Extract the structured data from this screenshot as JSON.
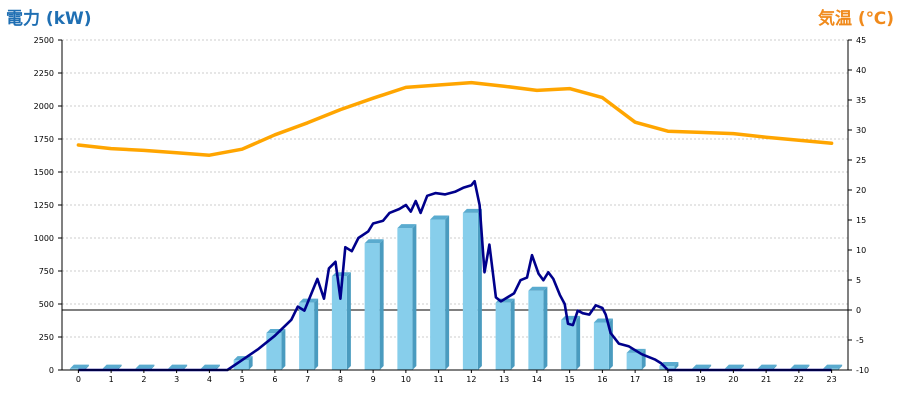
{
  "chart_data": {
    "type": "bar+line",
    "left_axis": {
      "label": "電力 (kW)",
      "range": [
        0,
        2500
      ],
      "ticks": [
        0,
        250,
        500,
        750,
        1000,
        1250,
        1500,
        1750,
        2000,
        2250,
        2500
      ]
    },
    "right_axis": {
      "label": "気温 (℃)",
      "range": [
        -10,
        45
      ],
      "ticks": [
        -10,
        -5,
        0,
        5,
        10,
        15,
        20,
        25,
        30,
        35,
        40,
        45
      ]
    },
    "categories": [
      "0",
      "1",
      "2",
      "3",
      "4",
      "5",
      "6",
      "7",
      "8",
      "9",
      "10",
      "11",
      "12",
      "13",
      "14",
      "15",
      "16",
      "17",
      "18",
      "19",
      "20",
      "21",
      "22",
      "23"
    ],
    "grid": "horizontal dashed",
    "colors": {
      "left_title": "#1f6fb3",
      "right_title": "#f08a1c",
      "bars": "#87ceeb",
      "power_line": "#00008b",
      "temperature_line": "#ffa500"
    },
    "series": [
      {
        "type": "bar",
        "axis": "left",
        "values": [
          10,
          10,
          10,
          10,
          10,
          75,
          280,
          510,
          710,
          960,
          1075,
          1140,
          1190,
          510,
          600,
          380,
          360,
          130,
          30,
          10,
          10,
          10,
          10,
          10
        ]
      },
      {
        "type": "line",
        "axis": "left",
        "points": [
          [
            0,
            0
          ],
          [
            1,
            0
          ],
          [
            2,
            0
          ],
          [
            3,
            0
          ],
          [
            4,
            0
          ],
          [
            4.55,
            0
          ],
          [
            5,
            75
          ],
          [
            5.5,
            160
          ],
          [
            6,
            260
          ],
          [
            6.5,
            380
          ],
          [
            6.7,
            480
          ],
          [
            6.9,
            450
          ],
          [
            7.1,
            570
          ],
          [
            7.3,
            690
          ],
          [
            7.5,
            540
          ],
          [
            7.65,
            770
          ],
          [
            7.85,
            820
          ],
          [
            8.0,
            540
          ],
          [
            8.15,
            930
          ],
          [
            8.35,
            900
          ],
          [
            8.55,
            1000
          ],
          [
            8.85,
            1050
          ],
          [
            9.0,
            1110
          ],
          [
            9.3,
            1130
          ],
          [
            9.5,
            1190
          ],
          [
            9.8,
            1220
          ],
          [
            10.0,
            1250
          ],
          [
            10.15,
            1200
          ],
          [
            10.3,
            1280
          ],
          [
            10.45,
            1190
          ],
          [
            10.65,
            1320
          ],
          [
            10.9,
            1340
          ],
          [
            11.2,
            1330
          ],
          [
            11.5,
            1350
          ],
          [
            11.75,
            1380
          ],
          [
            12.0,
            1400
          ],
          [
            12.1,
            1430
          ],
          [
            12.25,
            1250
          ],
          [
            12.4,
            740
          ],
          [
            12.55,
            950
          ],
          [
            12.75,
            550
          ],
          [
            12.9,
            520
          ],
          [
            13.1,
            550
          ],
          [
            13.3,
            580
          ],
          [
            13.5,
            680
          ],
          [
            13.7,
            700
          ],
          [
            13.85,
            870
          ],
          [
            14.05,
            730
          ],
          [
            14.2,
            680
          ],
          [
            14.35,
            740
          ],
          [
            14.5,
            690
          ],
          [
            14.7,
            570
          ],
          [
            14.85,
            500
          ],
          [
            14.95,
            350
          ],
          [
            15.1,
            340
          ],
          [
            15.25,
            450
          ],
          [
            15.4,
            430
          ],
          [
            15.6,
            420
          ],
          [
            15.8,
            490
          ],
          [
            16.0,
            470
          ],
          [
            16.1,
            420
          ],
          [
            16.25,
            280
          ],
          [
            16.5,
            200
          ],
          [
            16.8,
            180
          ],
          [
            17.2,
            120
          ],
          [
            17.6,
            80
          ],
          [
            17.8,
            50
          ],
          [
            18,
            0
          ],
          [
            19,
            0
          ],
          [
            20,
            0
          ],
          [
            21,
            0
          ],
          [
            22,
            0
          ],
          [
            23,
            0
          ]
        ]
      },
      {
        "type": "line",
        "axis": "right",
        "values": [
          27.5,
          26.9,
          26.6,
          26.2,
          25.8,
          26.8,
          29.2,
          31.2,
          33.4,
          35.3,
          37.1,
          37.5,
          37.9,
          37.3,
          36.6,
          36.9,
          35.4,
          31.3,
          29.8,
          29.6,
          29.4,
          28.8,
          28.3,
          27.8
        ]
      }
    ]
  }
}
